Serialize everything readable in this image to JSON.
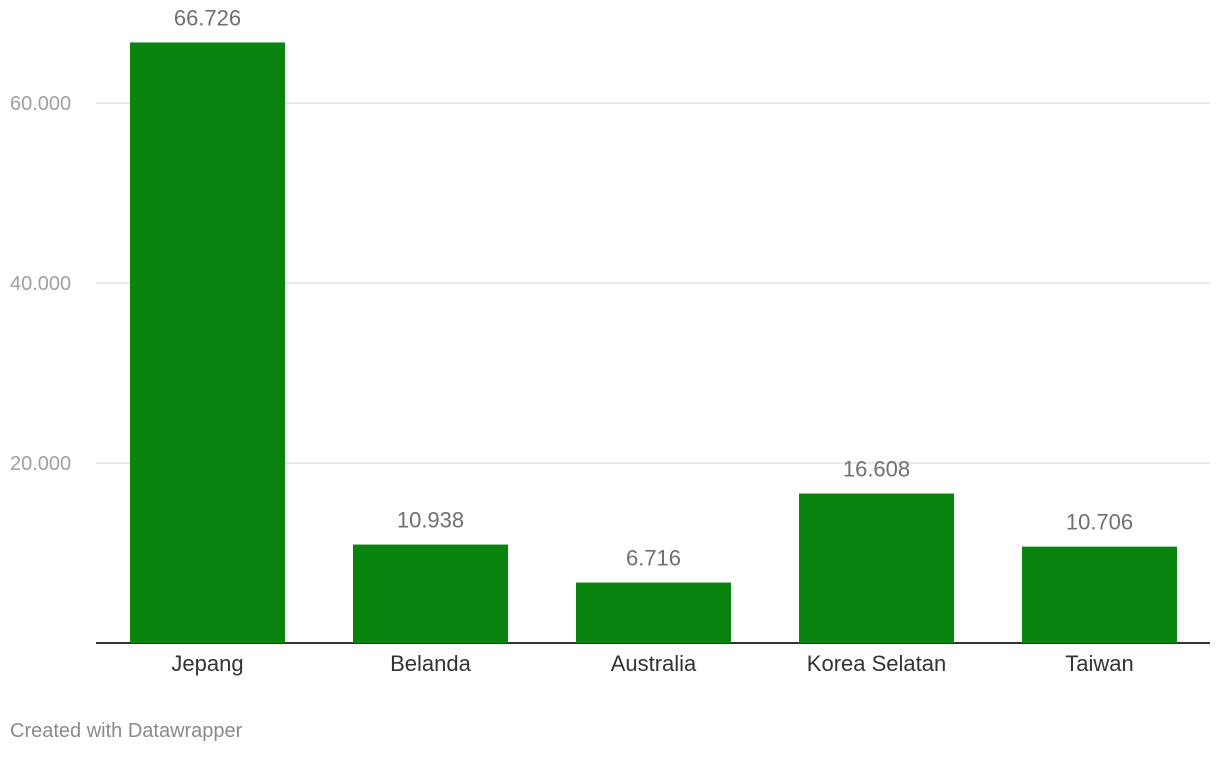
{
  "chart_data": {
    "type": "bar",
    "categories": [
      "Jepang",
      "Belanda",
      "Australia",
      "Korea Selatan",
      "Taiwan"
    ],
    "values": [
      66726,
      10938,
      6716,
      16608,
      10706
    ],
    "value_labels": [
      "66.726",
      "10.938",
      "6.716",
      "16.608",
      "10.706"
    ],
    "y_ticks": [
      20000,
      40000,
      60000
    ],
    "y_tick_labels": [
      "20.000",
      "40.000",
      "60.000"
    ],
    "ylim": [
      0,
      70000
    ],
    "grid": true,
    "title": "",
    "xlabel": "",
    "ylabel": ""
  },
  "colors": {
    "bar": "#09850f",
    "grid": "#e0e0e0",
    "axis": "#333333",
    "tick_label": "#a0a0a0",
    "value_label": "#707070",
    "category_label": "#333333"
  },
  "footer": {
    "credit": "Created with Datawrapper"
  }
}
